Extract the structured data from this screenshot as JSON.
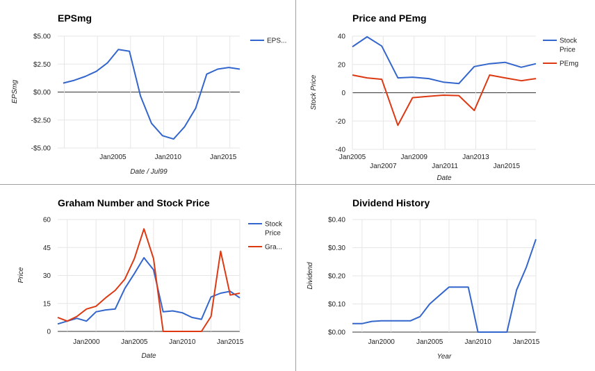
{
  "colors": {
    "blue": "#3366cc",
    "red": "#dc3912",
    "grid": "#e6e6e6",
    "zero": "#333333"
  },
  "chart_data": [
    {
      "id": "eps",
      "type": "line",
      "title": "EPSmg",
      "xlabel": "Date / Jul99",
      "ylabel": "EPSmg",
      "ylim": [
        -5,
        5
      ],
      "xlim": [
        2000,
        2016.5
      ],
      "grid": true,
      "legend": "right",
      "y_ticks": [
        {
          "v": 5,
          "label": "$5.00"
        },
        {
          "v": 2.5,
          "label": "$2.50"
        },
        {
          "v": 0,
          "label": "$0.00"
        },
        {
          "v": -2.5,
          "label": "-$2.50"
        },
        {
          "v": -5,
          "label": "-$5.00"
        }
      ],
      "x_ticks": [
        {
          "v": 2005,
          "label": "Jan2005"
        },
        {
          "v": 2010,
          "label": "Jan2010"
        },
        {
          "v": 2015,
          "label": "Jan2015"
        }
      ],
      "x_grid": [
        2000.6,
        2003.6,
        2006.6,
        2009.6,
        2012.6,
        2015.6
      ],
      "series": [
        {
          "name": "EPS...",
          "color": "#3366cc",
          "x": [
            2000.5,
            2001.5,
            2002.5,
            2003.5,
            2004.5,
            2005.5,
            2006.5,
            2007.5,
            2008.5,
            2009.5,
            2010.5,
            2011.5,
            2012.5,
            2013.5,
            2014.5,
            2015.5,
            2016.5
          ],
          "y": [
            0.8,
            1.05,
            1.4,
            1.85,
            2.6,
            3.8,
            3.65,
            -0.35,
            -2.8,
            -3.9,
            -4.2,
            -3.1,
            -1.45,
            1.6,
            2.05,
            2.2,
            2.05
          ]
        }
      ]
    },
    {
      "id": "price_pe",
      "type": "line",
      "title": "Price and PEmg",
      "xlabel": "Date",
      "ylabel": "Stock Price",
      "ylim": [
        -40,
        40
      ],
      "xlim": [
        2005,
        2016.9
      ],
      "grid": true,
      "legend": "right",
      "y_ticks": [
        {
          "v": 40,
          "label": "40"
        },
        {
          "v": 20,
          "label": "20"
        },
        {
          "v": 0,
          "label": "0"
        },
        {
          "v": -20,
          "label": "-20"
        },
        {
          "v": -40,
          "label": "-40"
        }
      ],
      "x_ticks": [
        {
          "v": 2005,
          "label": "Jan2005",
          "row": 1
        },
        {
          "v": 2007,
          "label": "Jan2007",
          "row": 2
        },
        {
          "v": 2009,
          "label": "Jan2009",
          "row": 1
        },
        {
          "v": 2011,
          "label": "Jan2011",
          "row": 2
        },
        {
          "v": 2013,
          "label": "Jan2013",
          "row": 1
        },
        {
          "v": 2015,
          "label": "Jan2015",
          "row": 2
        }
      ],
      "x_grid": [
        2005,
        2007,
        2009,
        2011,
        2013,
        2015
      ],
      "series": [
        {
          "name": "Stock Price",
          "name_lines": [
            "Stock",
            "Price"
          ],
          "color": "#3366cc",
          "x": [
            2005,
            2005.95,
            2006.9,
            2007.95,
            2008.9,
            2009.95,
            2010.9,
            2011.9,
            2012.9,
            2013.9,
            2014.9,
            2015.95,
            2016.9
          ],
          "y": [
            32.5,
            39.5,
            33,
            10.5,
            11,
            10,
            7.5,
            6.5,
            18.5,
            20.5,
            21.5,
            18,
            20.5
          ]
        },
        {
          "name": "PEmg",
          "color": "#dc3912",
          "x": [
            2005,
            2005.95,
            2006.9,
            2007.95,
            2008.9,
            2009.95,
            2010.9,
            2011.9,
            2012.9,
            2013.9,
            2014.9,
            2015.95,
            2016.9
          ],
          "y": [
            12.5,
            10.5,
            9.5,
            -23,
            -3.5,
            -2.5,
            -1.7,
            -2,
            -12.5,
            12.5,
            10.5,
            8.5,
            10
          ]
        }
      ]
    },
    {
      "id": "graham",
      "type": "line",
      "title": "Graham Number and Stock Price",
      "xlabel": "Date",
      "ylabel": "Price",
      "ylim": [
        0,
        60
      ],
      "xlim": [
        1997,
        2016
      ],
      "grid": true,
      "legend": "right",
      "y_ticks": [
        {
          "v": 60,
          "label": "60"
        },
        {
          "v": 45,
          "label": "45"
        },
        {
          "v": 30,
          "label": "30"
        },
        {
          "v": 15,
          "label": "15"
        },
        {
          "v": 0,
          "label": "0"
        }
      ],
      "x_ticks": [
        {
          "v": 2000,
          "label": "Jan2000"
        },
        {
          "v": 2005,
          "label": "Jan2005"
        },
        {
          "v": 2010,
          "label": "Jan2010"
        },
        {
          "v": 2015,
          "label": "Jan2015"
        }
      ],
      "x_grid": [
        1998,
        2001,
        2004,
        2007,
        2010,
        2013,
        2016
      ],
      "series": [
        {
          "name": "Stock Price",
          "name_lines": [
            "Stock",
            "Price"
          ],
          "color": "#3366cc",
          "x": [
            1997,
            1998,
            1999,
            2000,
            2001,
            2002,
            2003,
            2004,
            2005,
            2006,
            2007,
            2008,
            2009,
            2010,
            2011,
            2012,
            2013,
            2014,
            2015,
            2016
          ],
          "y": [
            4,
            5.5,
            7,
            5.5,
            10.5,
            11.5,
            12,
            23,
            31,
            39.5,
            33,
            10.5,
            11,
            10,
            7.5,
            6.5,
            18.5,
            20.5,
            21.5,
            18
          ]
        },
        {
          "name": "Gra...",
          "color": "#dc3912",
          "x": [
            1997,
            1998,
            1999,
            2000,
            2001,
            2002,
            2003,
            2004,
            2005,
            2006,
            2007,
            2008,
            2009,
            2010,
            2011,
            2012,
            2013,
            2014,
            2015,
            2016
          ],
          "y": [
            7.5,
            5.5,
            8,
            12,
            13.5,
            18,
            22,
            28,
            39,
            55,
            39,
            0,
            0,
            0,
            0,
            0,
            8,
            43,
            19.5,
            20.5
          ]
        }
      ]
    },
    {
      "id": "dividend",
      "type": "line",
      "title": "Dividend History",
      "xlabel": "Year",
      "ylabel": "Dividend",
      "ylim": [
        0,
        0.4
      ],
      "xlim": [
        1997,
        2016
      ],
      "grid": true,
      "legend": "none",
      "y_ticks": [
        {
          "v": 0.4,
          "label": "$0.40"
        },
        {
          "v": 0.3,
          "label": "$0.30"
        },
        {
          "v": 0.2,
          "label": "$0.20"
        },
        {
          "v": 0.1,
          "label": "$0.10"
        },
        {
          "v": 0,
          "label": "$0.00"
        }
      ],
      "x_ticks": [
        {
          "v": 2000,
          "label": "Jan2000"
        },
        {
          "v": 2005,
          "label": "Jan2005"
        },
        {
          "v": 2010,
          "label": "Jan2010"
        },
        {
          "v": 2015,
          "label": "Jan2015"
        }
      ],
      "x_grid": [
        1998,
        2001,
        2004,
        2007,
        2010,
        2013,
        2016
      ],
      "series": [
        {
          "name": "Dividend",
          "color": "#3366cc",
          "x": [
            1997,
            1998,
            1999,
            2000,
            2001,
            2002,
            2003,
            2004,
            2005,
            2006,
            2007,
            2008,
            2009,
            2010,
            2011,
            2012,
            2013,
            2014,
            2015,
            2016
          ],
          "y": [
            0.03,
            0.03,
            0.038,
            0.04,
            0.04,
            0.04,
            0.04,
            0.055,
            0.1,
            0.13,
            0.16,
            0.16,
            0.16,
            0,
            0,
            0,
            0,
            0.15,
            0.23,
            0.33
          ]
        }
      ]
    }
  ]
}
